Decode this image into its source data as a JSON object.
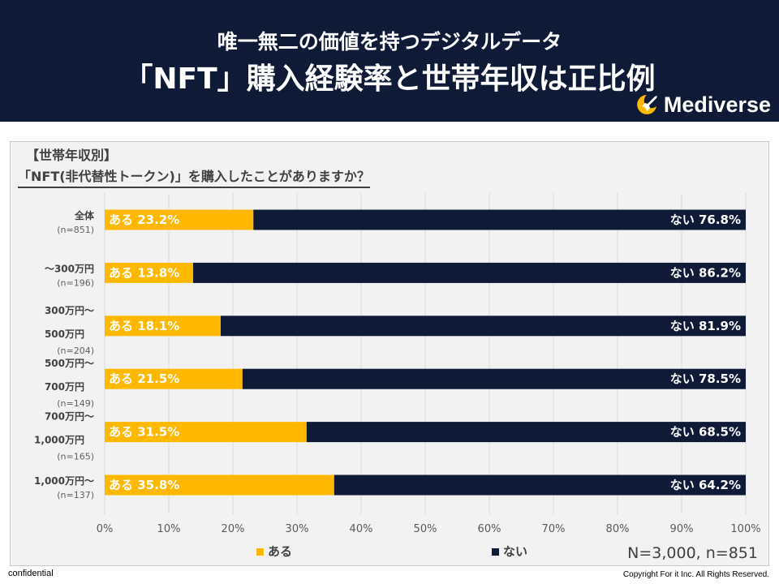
{
  "header": {
    "title_line1": "唯一無二の価値を持つデジタルデータ",
    "title_line2": "「NFT」購入経験率と世帯年収は正比例",
    "logo_text": "Mediverse"
  },
  "question": {
    "category": "【世帯年収別】",
    "text": "「NFT(非代替性トークン)」を購入したことがありますか？"
  },
  "chart_data": {
    "type": "bar",
    "orientation": "horizontal",
    "stacked": true,
    "categories": [
      {
        "lines": [
          "全体"
        ],
        "n": "(n=851)"
      },
      {
        "lines": [
          "～300万円"
        ],
        "n": "(n=196)"
      },
      {
        "lines": [
          "300万円～",
          "500万円"
        ],
        "n": "(n=204)"
      },
      {
        "lines": [
          "500万円～",
          "700万円"
        ],
        "n": "(n=149)"
      },
      {
        "lines": [
          "700万円～",
          "1,000万円"
        ],
        "n": "(n=165)"
      },
      {
        "lines": [
          "1,000万円～"
        ],
        "n": "(n=137)"
      }
    ],
    "series": [
      {
        "name": "ある",
        "color": "#ffb800",
        "label_prefix": "ある",
        "values": [
          23.2,
          13.8,
          18.1,
          21.5,
          31.5,
          35.8
        ]
      },
      {
        "name": "ない",
        "color": "#0e1a36",
        "label_prefix": "ない",
        "values": [
          76.8,
          86.2,
          81.9,
          78.5,
          68.5,
          64.2
        ]
      }
    ],
    "x_ticks": [
      "0%",
      "10%",
      "20%",
      "30%",
      "40%",
      "50%",
      "60%",
      "70%",
      "80%",
      "90%",
      "100%"
    ],
    "xlim": [
      0,
      100
    ],
    "grid": true,
    "legend": "bottom",
    "sample_note": "N=3,000, n=851"
  },
  "footer": {
    "left": "confidential",
    "right": "Copyright For it Inc. All Rights Reserved."
  }
}
